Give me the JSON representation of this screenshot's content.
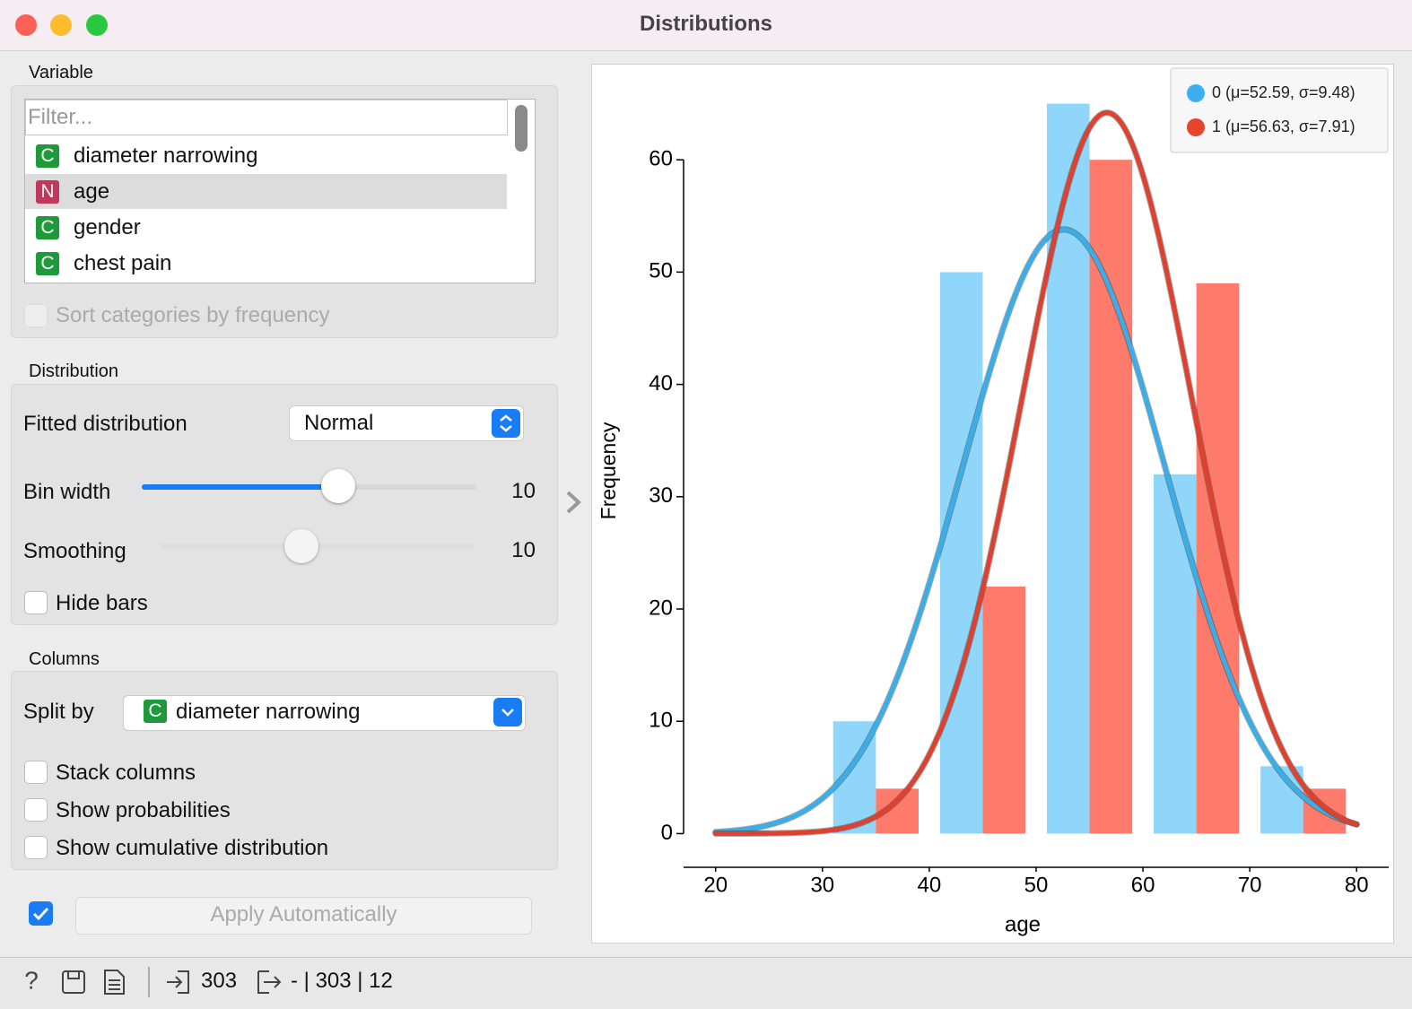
{
  "window": {
    "title": "Distributions"
  },
  "variable": {
    "heading": "Variable",
    "filter_placeholder": "Filter...",
    "items": [
      {
        "badge": "C",
        "label": "diameter narrowing"
      },
      {
        "badge": "N",
        "label": "age"
      },
      {
        "badge": "C",
        "label": "gender"
      },
      {
        "badge": "C",
        "label": "chest pain"
      }
    ],
    "sort_label": "Sort categories by frequency"
  },
  "distribution": {
    "heading": "Distribution",
    "fitted_label": "Fitted distribution",
    "fitted_value": "Normal",
    "bin_width_label": "Bin width",
    "bin_width_value": 10,
    "smoothing_label": "Smoothing",
    "smoothing_value": 10,
    "hide_bars_label": "Hide bars"
  },
  "columns": {
    "heading": "Columns",
    "split_label": "Split by",
    "split_badge": "C",
    "split_value": "diameter narrowing",
    "stack_label": "Stack columns",
    "probabilities_label": "Show probabilities",
    "cumulative_label": "Show cumulative distribution"
  },
  "apply_label": "Apply Automatically",
  "status": {
    "input": 303,
    "output": "- | 303 | 12"
  },
  "chart_data": {
    "type": "grouped-histogram",
    "x_label": "age",
    "y_label": "Frequency",
    "bins": [
      20,
      30,
      40,
      50,
      60,
      70,
      80
    ],
    "series": [
      {
        "name": "0 (μ=52.59, σ=9.48)",
        "color": "#8fd6fa",
        "line_color": "#3aaee8",
        "legend_color": "#3daef0",
        "values": [
          0.3,
          10,
          50,
          65,
          32,
          6
        ],
        "fit_mean": 52.59,
        "fit_sd": 9.48,
        "fit_peak": 53.8
      },
      {
        "name": "1 (μ=56.63, σ=7.91)",
        "color": "#fe7b6c",
        "line_color": "#e0402e",
        "legend_color": "#e8432f",
        "values": [
          0,
          4,
          22,
          60,
          49,
          4
        ],
        "fit_mean": 56.63,
        "fit_sd": 7.91,
        "fit_peak": 64.2
      }
    ],
    "xlim": [
      17,
      83
    ],
    "xticks": [
      20,
      30,
      40,
      50,
      60,
      70,
      80
    ],
    "ylim": [
      -3,
      68
    ],
    "yticks": [
      0,
      10,
      20,
      30,
      40,
      50,
      60
    ],
    "legend": "upper right"
  }
}
